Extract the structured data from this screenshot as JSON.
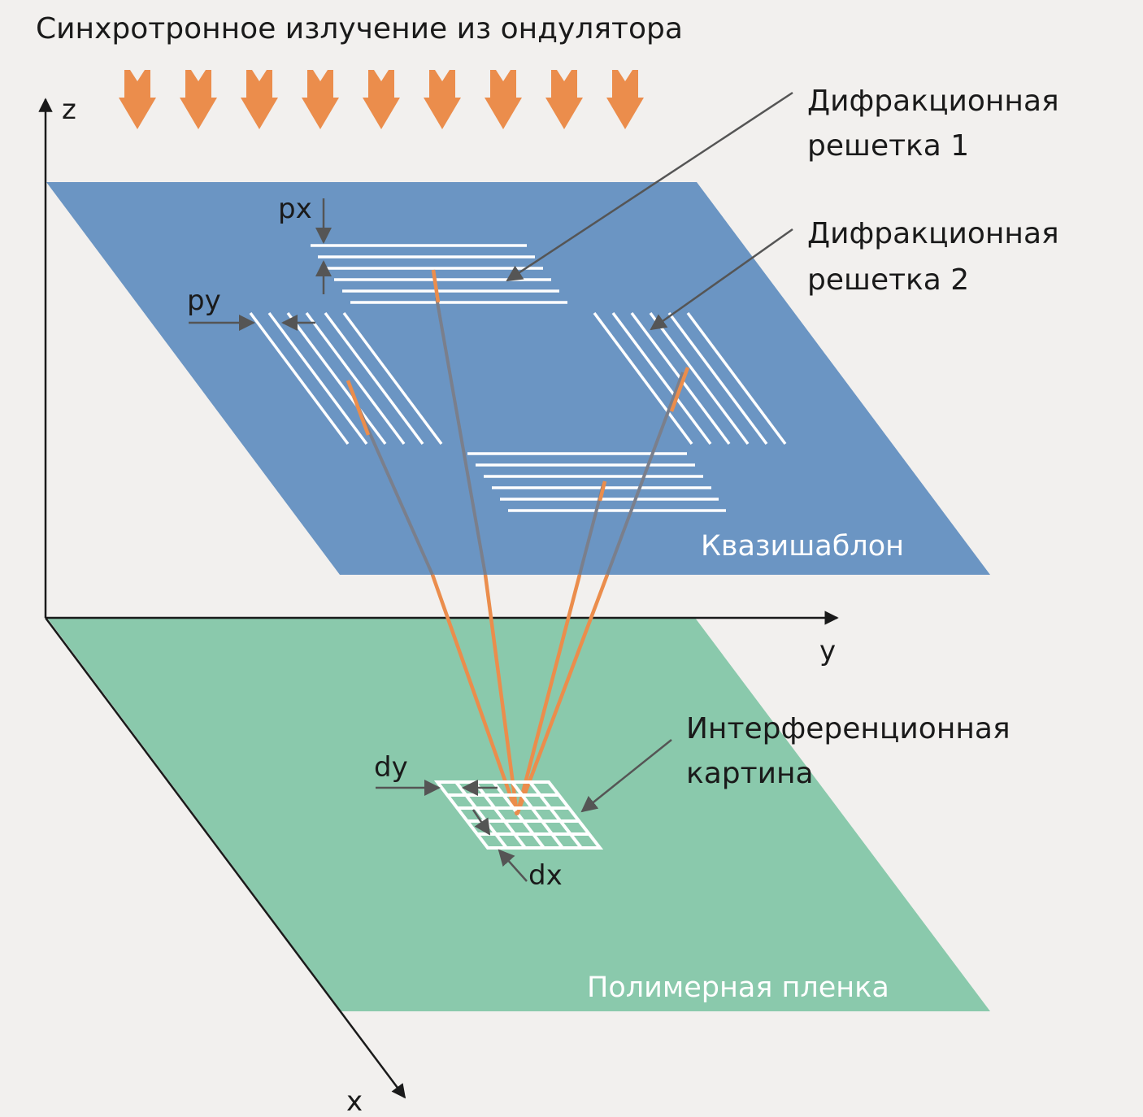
{
  "title": "Синхротронное излучение из ондулятора",
  "labels": {
    "grating1_line1": "Дифракционная",
    "grating1_line2": "решетка 1",
    "grating2_line1": "Дифракционная",
    "grating2_line2": "решетка 2",
    "interference_line1": "Интерференционная",
    "interference_line2": "картина",
    "mask": "Квазишаблон",
    "film": "Полимерная пленка",
    "px": "px",
    "py": "py",
    "dx": "dx",
    "dy": "dy"
  },
  "axes": {
    "z": "z",
    "y": "y",
    "x": "x"
  },
  "colors": {
    "background": "#f2f0ee",
    "mask": "#6b95c3",
    "film": "#8ac9ac",
    "beam": "#eb8d4c",
    "arrow_gray": "#555555"
  }
}
